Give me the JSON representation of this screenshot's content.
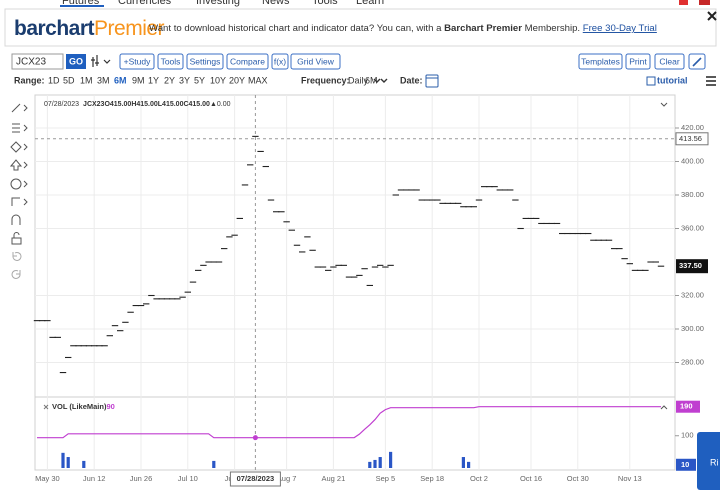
{
  "nav": [
    "Futures",
    "Currencies",
    "Investing",
    "News",
    "Tools",
    "Learn"
  ],
  "banner": {
    "logo_main": "barchart",
    "logo_accent": "Premier",
    "message_start": "Want to download historical chart and indicator data? You can, with a ",
    "message_bold": "Barchart Premier",
    "message_end": " Membership. ",
    "link": "Free 30-Day Trial"
  },
  "toolbar": {
    "symbol": "JCX23",
    "go": "GO",
    "buttons": [
      "+Study",
      "Tools",
      "Settings",
      "Compare",
      "f(x)",
      "Grid View"
    ],
    "right_buttons": [
      "Templates",
      "Print",
      "Clear"
    ]
  },
  "range_bar": {
    "range_label": "Range:",
    "ranges": [
      "1D",
      "5D",
      "1M",
      "3M",
      "6M",
      "9M",
      "1Y",
      "2Y",
      "3Y",
      "5Y",
      "10Y",
      "20Y",
      "MAX"
    ],
    "selected_range": "6M",
    "frequency_label": "Frequency:",
    "frequency": "Daily",
    "period": "6M",
    "date_label": "Date:",
    "tutorial": "tutorial"
  },
  "side_button": "Ri",
  "chart_data": {
    "type": "dash",
    "header": {
      "date": "07/28/2023",
      "symbol": "JCX23",
      "quote": [
        "O415.00",
        "H415.00",
        "L415.00",
        "C415.00"
      ],
      "change": "▲0.00"
    },
    "color": "#222222",
    "categories": [
      null,
      null,
      "May 30",
      null,
      null,
      null,
      null,
      null,
      null,
      null,
      null,
      "Jun 12",
      null,
      null,
      null,
      null,
      null,
      null,
      null,
      null,
      "Jun 26",
      null,
      null,
      null,
      null,
      null,
      null,
      null,
      null,
      "Jul 10",
      null,
      null,
      null,
      null,
      null,
      null,
      null,
      null,
      "Jul 24",
      null,
      null,
      null,
      null,
      null,
      null,
      null,
      null,
      null,
      "Aug 7",
      null,
      null,
      null,
      null,
      null,
      null,
      null,
      null,
      "Aug 21",
      null,
      null,
      null,
      null,
      null,
      null,
      null,
      null,
      null,
      "Sep 5",
      null,
      null,
      null,
      null,
      null,
      null,
      null,
      null,
      "Sep 18",
      null,
      null,
      null,
      null,
      null,
      null,
      null,
      null,
      "Oct 2",
      null,
      null,
      null,
      null,
      null,
      null,
      null,
      null,
      null,
      "Oct 16",
      null,
      null,
      null,
      null,
      null,
      null,
      null,
      null,
      "Oct 30",
      null,
      null,
      null,
      null,
      null,
      null,
      null,
      null,
      null,
      "Nov 13",
      null,
      null,
      null,
      null,
      null,
      null
    ],
    "values": [
      305,
      305,
      305,
      295,
      295,
      274,
      283,
      290,
      290,
      290,
      290,
      290,
      290,
      290,
      296,
      302,
      299,
      304,
      310,
      314,
      314,
      315,
      320,
      318,
      318,
      318,
      318,
      318,
      319,
      322,
      328,
      335,
      338,
      340,
      340,
      340,
      348,
      355,
      356,
      366,
      386,
      398,
      415,
      406,
      397,
      377,
      370,
      370,
      364,
      359,
      350,
      346,
      355,
      347,
      337,
      337,
      335,
      337,
      338,
      338,
      331,
      331,
      332,
      336,
      326,
      337,
      338,
      337,
      338,
      380,
      383,
      383,
      383,
      383,
      377,
      377,
      377,
      377,
      375,
      375,
      375,
      375,
      373,
      373,
      373,
      377,
      385,
      385,
      385,
      383,
      383,
      383,
      377,
      360,
      366,
      366,
      366,
      363,
      363,
      363,
      363,
      357,
      357,
      357,
      357,
      357,
      357,
      353,
      353,
      353,
      353,
      348,
      348,
      342,
      339,
      335,
      335,
      335,
      340,
      340,
      337.5
    ],
    "ylim": [
      260.6,
      439.7
    ],
    "yticks": [
      {
        "value": 280,
        "label": "280.00"
      },
      {
        "value": 300,
        "label": "300.00"
      },
      {
        "value": 320,
        "label": "320.00"
      },
      {
        "value": 360,
        "label": "360.00"
      },
      {
        "value": 380,
        "label": "380.00"
      },
      {
        "value": 400,
        "label": "400.00"
      },
      {
        "value": 420,
        "label": "420.00"
      }
    ],
    "grid": true,
    "last_price": {
      "value": 337.5,
      "label": "337.50"
    },
    "crosshair": {
      "date": "07/28/2023",
      "price": 413.56
    },
    "lower": {
      "title": "VOL (LikeMain)",
      "title_value": "90",
      "ylim": [
        0,
        217
      ],
      "yticks": [
        100
      ],
      "volume": {
        "color": "#2a56c6",
        "last": 10,
        "values": [
          null,
          null,
          null,
          null,
          null,
          47,
          34,
          null,
          null,
          22,
          null,
          null,
          null,
          null,
          null,
          null,
          null,
          null,
          null,
          null,
          null,
          null,
          null,
          null,
          null,
          null,
          null,
          null,
          null,
          null,
          null,
          null,
          null,
          null,
          22,
          null,
          null,
          null,
          null,
          null,
          null,
          null,
          null,
          null,
          null,
          null,
          null,
          null,
          null,
          null,
          null,
          null,
          null,
          null,
          null,
          null,
          null,
          null,
          null,
          null,
          null,
          null,
          null,
          null,
          19,
          25,
          34,
          null,
          50,
          null,
          null,
          null,
          null,
          null,
          null,
          null,
          null,
          null,
          null,
          null,
          null,
          null,
          34,
          19,
          null,
          null,
          null,
          null,
          null,
          null,
          null,
          null,
          null,
          null,
          null,
          null,
          null,
          null,
          null,
          null,
          null,
          null,
          null,
          null,
          null,
          null,
          null,
          null,
          null,
          null,
          null,
          null,
          null,
          null,
          null,
          null,
          null,
          null,
          null,
          null,
          null
        ]
      },
      "line": {
        "color": "#c03fd0",
        "values": [
          94,
          94,
          94,
          94,
          94,
          94,
          106,
          106,
          106,
          106,
          106,
          106,
          106,
          106,
          106,
          106,
          106,
          106,
          106,
          106,
          106,
          106,
          106,
          106,
          106,
          106,
          106,
          106,
          106,
          106,
          106,
          106,
          106,
          106,
          94,
          94,
          94,
          94,
          94,
          94,
          94,
          94,
          94,
          94,
          94,
          94,
          94,
          94,
          94,
          94,
          94,
          94,
          94,
          94,
          94,
          94,
          94,
          94,
          94,
          94,
          94,
          94,
          105,
          120,
          134,
          150,
          170,
          181,
          187,
          187,
          187,
          187,
          187,
          187,
          187,
          187,
          187,
          187,
          187,
          187,
          187,
          187,
          187,
          187,
          187,
          190,
          190,
          190,
          190,
          190,
          190,
          190,
          190,
          190,
          190,
          190,
          190,
          190,
          190,
          190,
          190,
          190,
          190,
          190,
          190,
          190,
          190,
          190,
          190,
          190,
          190,
          190,
          190,
          190,
          190,
          190,
          190,
          190,
          190,
          190,
          190
        ]
      }
    }
  }
}
